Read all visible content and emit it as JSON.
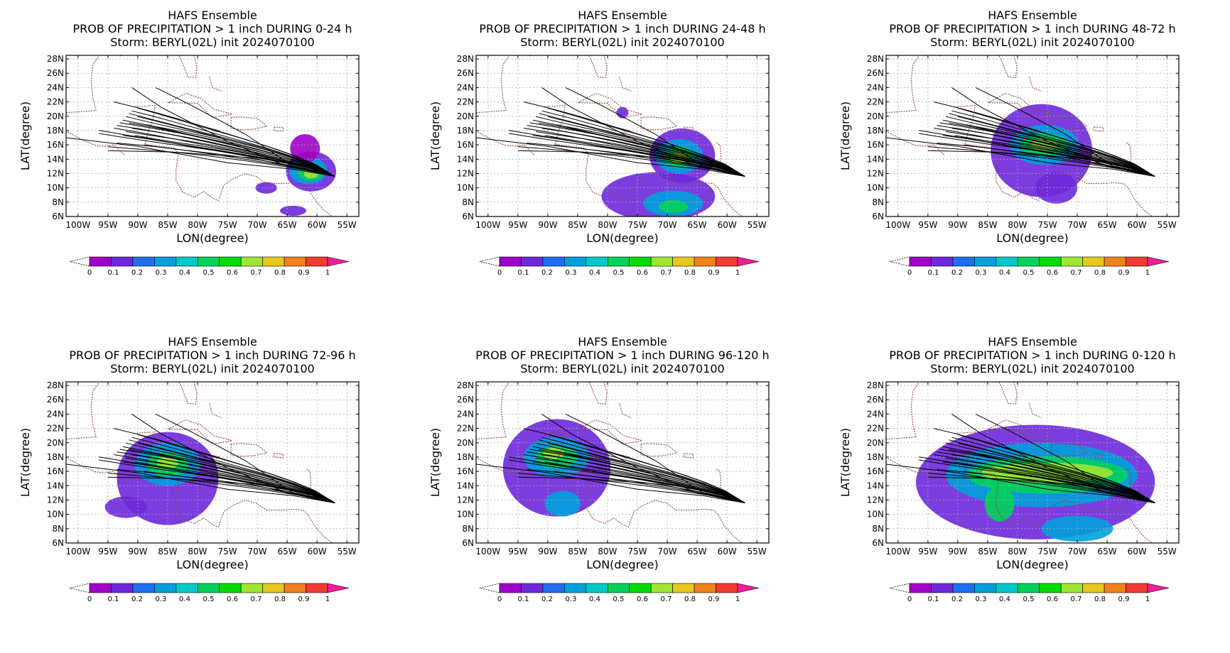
{
  "figure": {
    "panels": [
      {
        "title1": "HAFS Ensemble",
        "title2": "PROB OF PRECIPITATION > 1 inch DURING  0-24 h",
        "title3": "Storm: BERYL(02L) init 2024070100",
        "period": "0-24 h",
        "precip_regions": [
          {
            "lon": -61.0,
            "lat": 12.3,
            "rx": 4.2,
            "ry": 2.8,
            "p": 0.1
          },
          {
            "lon": -61.5,
            "lat": 12.4,
            "rx": 3.2,
            "ry": 1.9,
            "p": 0.3
          },
          {
            "lon": -61.0,
            "lat": 12.2,
            "rx": 2.2,
            "ry": 1.2,
            "p": 0.5
          },
          {
            "lon": -61.0,
            "lat": 12.0,
            "rx": 1.2,
            "ry": 0.7,
            "p": 0.7
          },
          {
            "lon": -62.0,
            "lat": 15.5,
            "rx": 2.5,
            "ry": 2.0,
            "p": 0.05
          },
          {
            "lon": -68.5,
            "lat": 10.0,
            "rx": 1.8,
            "ry": 0.8,
            "p": 0.1
          },
          {
            "lon": -64.0,
            "lat": 6.8,
            "rx": 2.2,
            "ry": 0.7,
            "p": 0.1
          }
        ]
      },
      {
        "title1": "HAFS Ensemble",
        "title2": "PROB OF PRECIPITATION > 1 inch DURING 24-48 h",
        "title3": "Storm: BERYL(02L) init 2024070100",
        "period": "24-48 h",
        "precip_regions": [
          {
            "lon": -67.5,
            "lat": 14.5,
            "rx": 5.5,
            "ry": 3.8,
            "p": 0.1
          },
          {
            "lon": -68.0,
            "lat": 14.4,
            "rx": 4.0,
            "ry": 2.4,
            "p": 0.3
          },
          {
            "lon": -68.0,
            "lat": 14.3,
            "rx": 2.6,
            "ry": 1.5,
            "p": 0.5
          },
          {
            "lon": -68.0,
            "lat": 14.2,
            "rx": 1.4,
            "ry": 0.8,
            "p": 0.7
          },
          {
            "lon": -71.5,
            "lat": 8.8,
            "rx": 9.5,
            "ry": 3.4,
            "p": 0.1
          },
          {
            "lon": -69.0,
            "lat": 7.8,
            "rx": 5.0,
            "ry": 1.8,
            "p": 0.3
          },
          {
            "lon": -69.0,
            "lat": 7.4,
            "rx": 2.5,
            "ry": 0.9,
            "p": 0.5
          },
          {
            "lon": -77.5,
            "lat": 20.5,
            "rx": 1.0,
            "ry": 0.8,
            "p": 0.1
          }
        ]
      },
      {
        "title1": "HAFS Ensemble",
        "title2": "PROB OF PRECIPITATION > 1 inch DURING 48-72 h",
        "title3": "Storm: BERYL(02L) init 2024070100",
        "period": "48-72 h",
        "precip_regions": [
          {
            "lon": -76.0,
            "lat": 15.2,
            "rx": 8.5,
            "ry": 6.5,
            "p": 0.1
          },
          {
            "lon": -75.5,
            "lat": 16.0,
            "rx": 5.8,
            "ry": 2.8,
            "p": 0.3
          },
          {
            "lon": -75.5,
            "lat": 16.0,
            "rx": 4.0,
            "ry": 1.6,
            "p": 0.5
          },
          {
            "lon": -75.5,
            "lat": 16.0,
            "rx": 2.2,
            "ry": 0.9,
            "p": 0.7
          },
          {
            "lon": -73.5,
            "lat": 10.0,
            "rx": 3.5,
            "ry": 2.2,
            "p": 0.1
          }
        ]
      },
      {
        "title1": "HAFS Ensemble",
        "title2": "PROB OF PRECIPITATION > 1 inch DURING 72-96 h",
        "title3": "Storm: BERYL(02L) init 2024070100",
        "period": "72-96 h",
        "precip_regions": [
          {
            "lon": -85.0,
            "lat": 15.0,
            "rx": 8.5,
            "ry": 6.5,
            "p": 0.1
          },
          {
            "lon": -85.0,
            "lat": 17.0,
            "rx": 5.5,
            "ry": 3.0,
            "p": 0.3
          },
          {
            "lon": -85.0,
            "lat": 17.0,
            "rx": 3.5,
            "ry": 1.7,
            "p": 0.5
          },
          {
            "lon": -85.0,
            "lat": 17.2,
            "rx": 1.8,
            "ry": 0.9,
            "p": 0.7
          },
          {
            "lon": -92.0,
            "lat": 11.0,
            "rx": 3.5,
            "ry": 1.5,
            "p": 0.1
          }
        ]
      },
      {
        "title1": "HAFS Ensemble",
        "title2": "PROB OF PRECIPITATION > 1 inch DURING 96-120 h",
        "title3": "Storm: BERYL(02L) init 2024070100",
        "period": "96-120 h",
        "precip_regions": [
          {
            "lon": -88.5,
            "lat": 16.5,
            "rx": 9.0,
            "ry": 6.8,
            "p": 0.1
          },
          {
            "lon": -88.5,
            "lat": 18.0,
            "rx": 5.5,
            "ry": 2.8,
            "p": 0.3
          },
          {
            "lon": -88.5,
            "lat": 18.0,
            "rx": 3.5,
            "ry": 1.6,
            "p": 0.5
          },
          {
            "lon": -89.0,
            "lat": 18.5,
            "rx": 1.8,
            "ry": 0.8,
            "p": 0.7
          },
          {
            "lon": -87.5,
            "lat": 11.5,
            "rx": 3.0,
            "ry": 1.8,
            "p": 0.3
          }
        ]
      },
      {
        "title1": "HAFS Ensemble",
        "title2": "PROB OF PRECIPITATION > 1 inch DURING 0-120 h",
        "title3": "Storm: BERYL(02L) init 2024070100",
        "period": "0-120 h",
        "precip_regions": [
          {
            "lon": -77.0,
            "lat": 14.5,
            "rx": 20.0,
            "ry": 8.0,
            "p": 0.1
          },
          {
            "lon": -76.0,
            "lat": 15.5,
            "rx": 16.0,
            "ry": 4.5,
            "p": 0.3
          },
          {
            "lon": -75.0,
            "lat": 15.5,
            "rx": 13.5,
            "ry": 2.6,
            "p": 0.5
          },
          {
            "lon": -75.0,
            "lat": 15.8,
            "rx": 11.0,
            "ry": 1.4,
            "p": 0.7
          },
          {
            "lon": -70.0,
            "lat": 8.0,
            "rx": 6.0,
            "ry": 1.8,
            "p": 0.3
          },
          {
            "lon": -83.0,
            "lat": 11.5,
            "rx": 2.5,
            "ry": 2.5,
            "p": 0.5
          }
        ]
      }
    ],
    "axes": {
      "xlabel": "LON(degree)",
      "ylabel": "LAT(degree)",
      "lon_range": [
        -102,
        -53
      ],
      "lat_range": [
        6,
        28.5
      ],
      "x_ticks": [
        {
          "lon": -100,
          "label": "100W"
        },
        {
          "lon": -95,
          "label": "95W"
        },
        {
          "lon": -90,
          "label": "90W"
        },
        {
          "lon": -85,
          "label": "85W"
        },
        {
          "lon": -80,
          "label": "80W"
        },
        {
          "lon": -75,
          "label": "75W"
        },
        {
          "lon": -70,
          "label": "70W"
        },
        {
          "lon": -65,
          "label": "65W"
        },
        {
          "lon": -60,
          "label": "60W"
        },
        {
          "lon": -55,
          "label": "55W"
        }
      ],
      "y_ticks": [
        {
          "lat": 6,
          "label": "6N"
        },
        {
          "lat": 8,
          "label": "8N"
        },
        {
          "lat": 10,
          "label": "10N"
        },
        {
          "lat": 12,
          "label": "12N"
        },
        {
          "lat": 14,
          "label": "14N"
        },
        {
          "lat": 16,
          "label": "16N"
        },
        {
          "lat": 18,
          "label": "18N"
        },
        {
          "lat": 20,
          "label": "20N"
        },
        {
          "lat": 22,
          "label": "22N"
        },
        {
          "lat": 24,
          "label": "24N"
        },
        {
          "lat": 26,
          "label": "26N"
        },
        {
          "lat": 28,
          "label": "28N"
        }
      ],
      "grid": true
    },
    "colorbar": {
      "labels": [
        "0",
        "0.1",
        "0.2",
        "0.3",
        "0.4",
        "0.5",
        "0.6",
        "0.7",
        "0.8",
        "0.9",
        "1"
      ],
      "colors": [
        "#a000c8",
        "#6e28dc",
        "#1e6ef0",
        "#00a0dc",
        "#00c8c8",
        "#00d25a",
        "#00dc00",
        "#a0e632",
        "#e6c81e",
        "#f0821e",
        "#f03c32"
      ],
      "over_color": "#f01e96",
      "under_color": "#ffffff"
    },
    "colors": {
      "track": "#000000",
      "coastline": "#8b4a3c",
      "grid": "#aaaaaa"
    },
    "track_ensemble": {
      "start": {
        "lon": -57,
        "lat": 11.6
      },
      "members": [
        {
          "end_lon": -96.5,
          "end_lat": 17.6
        },
        {
          "end_lon": -96.5,
          "end_lat": 17.9
        },
        {
          "end_lon": -94.0,
          "end_lat": 18.2
        },
        {
          "end_lon": -93.5,
          "end_lat": 18.7
        },
        {
          "end_lon": -93.0,
          "end_lat": 19.2
        },
        {
          "end_lon": -92.5,
          "end_lat": 19.6
        },
        {
          "end_lon": -92.0,
          "end_lat": 20.0
        },
        {
          "end_lon": -91.5,
          "end_lat": 20.3
        },
        {
          "end_lon": -91.0,
          "end_lat": 20.6
        },
        {
          "end_lon": -91.5,
          "end_lat": 19.0
        },
        {
          "end_lon": -91.0,
          "end_lat": 18.4
        },
        {
          "end_lon": -92.0,
          "end_lat": 18.0
        },
        {
          "end_lon": -90.5,
          "end_lat": 17.4
        },
        {
          "end_lon": -89.5,
          "end_lat": 17.0
        },
        {
          "end_lon": -90.0,
          "end_lat": 19.8
        },
        {
          "end_lon": -94.0,
          "end_lat": 21.9
        },
        {
          "end_lon": -93.5,
          "end_lat": 16.3
        },
        {
          "end_lon": -95.0,
          "end_lat": 15.9
        },
        {
          "end_lon": -89.0,
          "end_lat": 16.1
        },
        {
          "end_lon": -88.5,
          "end_lat": 18.8
        },
        {
          "end_lon": -90.0,
          "end_lat": 21.0
        },
        {
          "end_lon": -92.5,
          "end_lat": 17.2
        }
      ],
      "outliers": [
        {
          "points": [
            [
              -57,
              11.6
            ],
            [
              -64,
              13.0
            ],
            [
              -72,
              17.5
            ],
            [
              -81,
              21.5
            ],
            [
              -87,
              24.0
            ]
          ]
        },
        {
          "points": [
            [
              -57,
              11.6
            ],
            [
              -65,
              13.0
            ],
            [
              -75,
              16.5
            ],
            [
              -86,
              21.2
            ],
            [
              -91,
              24.0
            ]
          ]
        },
        {
          "points": [
            [
              -57,
              11.6
            ],
            [
              -64,
              12.6
            ],
            [
              -75,
              13.5
            ],
            [
              -90,
              15.8
            ],
            [
              -102,
              17.0
            ]
          ]
        },
        {
          "points": [
            [
              -57,
              11.6
            ],
            [
              -63,
              12.7
            ],
            [
              -71,
              14.2
            ],
            [
              -84,
              15.0
            ],
            [
              -95,
              15.2
            ]
          ]
        }
      ]
    }
  }
}
